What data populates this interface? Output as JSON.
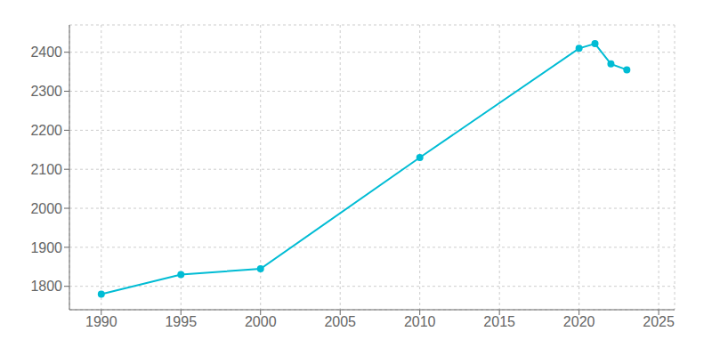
{
  "chart_data": {
    "type": "line",
    "x": [
      1990,
      1995,
      2000,
      2010,
      2020,
      2021,
      2022,
      2023
    ],
    "values": [
      1780,
      1830,
      1845,
      2130,
      2410,
      2422,
      2370,
      2355
    ],
    "color": "#00bcd4",
    "marker": "circle",
    "xlim": [
      1988,
      2026
    ],
    "ylim": [
      1740,
      2470
    ],
    "xticks": [
      1990,
      1995,
      2000,
      2005,
      2010,
      2015,
      2020,
      2025
    ],
    "yticks": [
      1800,
      1900,
      2000,
      2100,
      2200,
      2300,
      2400
    ],
    "grid": true
  }
}
